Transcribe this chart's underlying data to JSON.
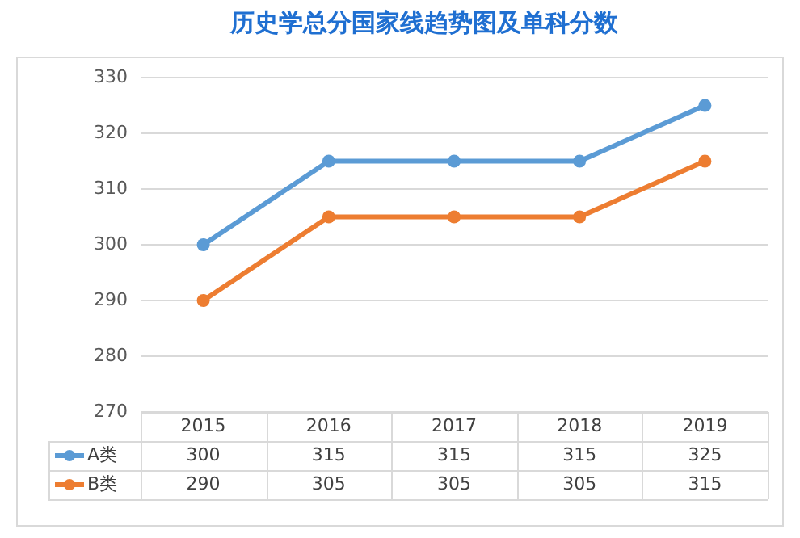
{
  "chart_data": {
    "type": "line",
    "title": "历史学总分国家线趋势图及单科分数",
    "categories": [
      "2015",
      "2016",
      "2017",
      "2018",
      "2019"
    ],
    "series": [
      {
        "name": "A类",
        "color": "#5b9bd5",
        "values": [
          300,
          315,
          315,
          315,
          325
        ]
      },
      {
        "name": "B类",
        "color": "#ed7d31",
        "values": [
          290,
          305,
          305,
          305,
          315
        ]
      }
    ],
    "ylim": [
      270,
      330
    ],
    "yticks": [
      270,
      280,
      290,
      300,
      310,
      320,
      330
    ],
    "grid": "y",
    "legend": "bottom left",
    "marker": "circle",
    "line_style": "solid",
    "data_labels": true
  }
}
